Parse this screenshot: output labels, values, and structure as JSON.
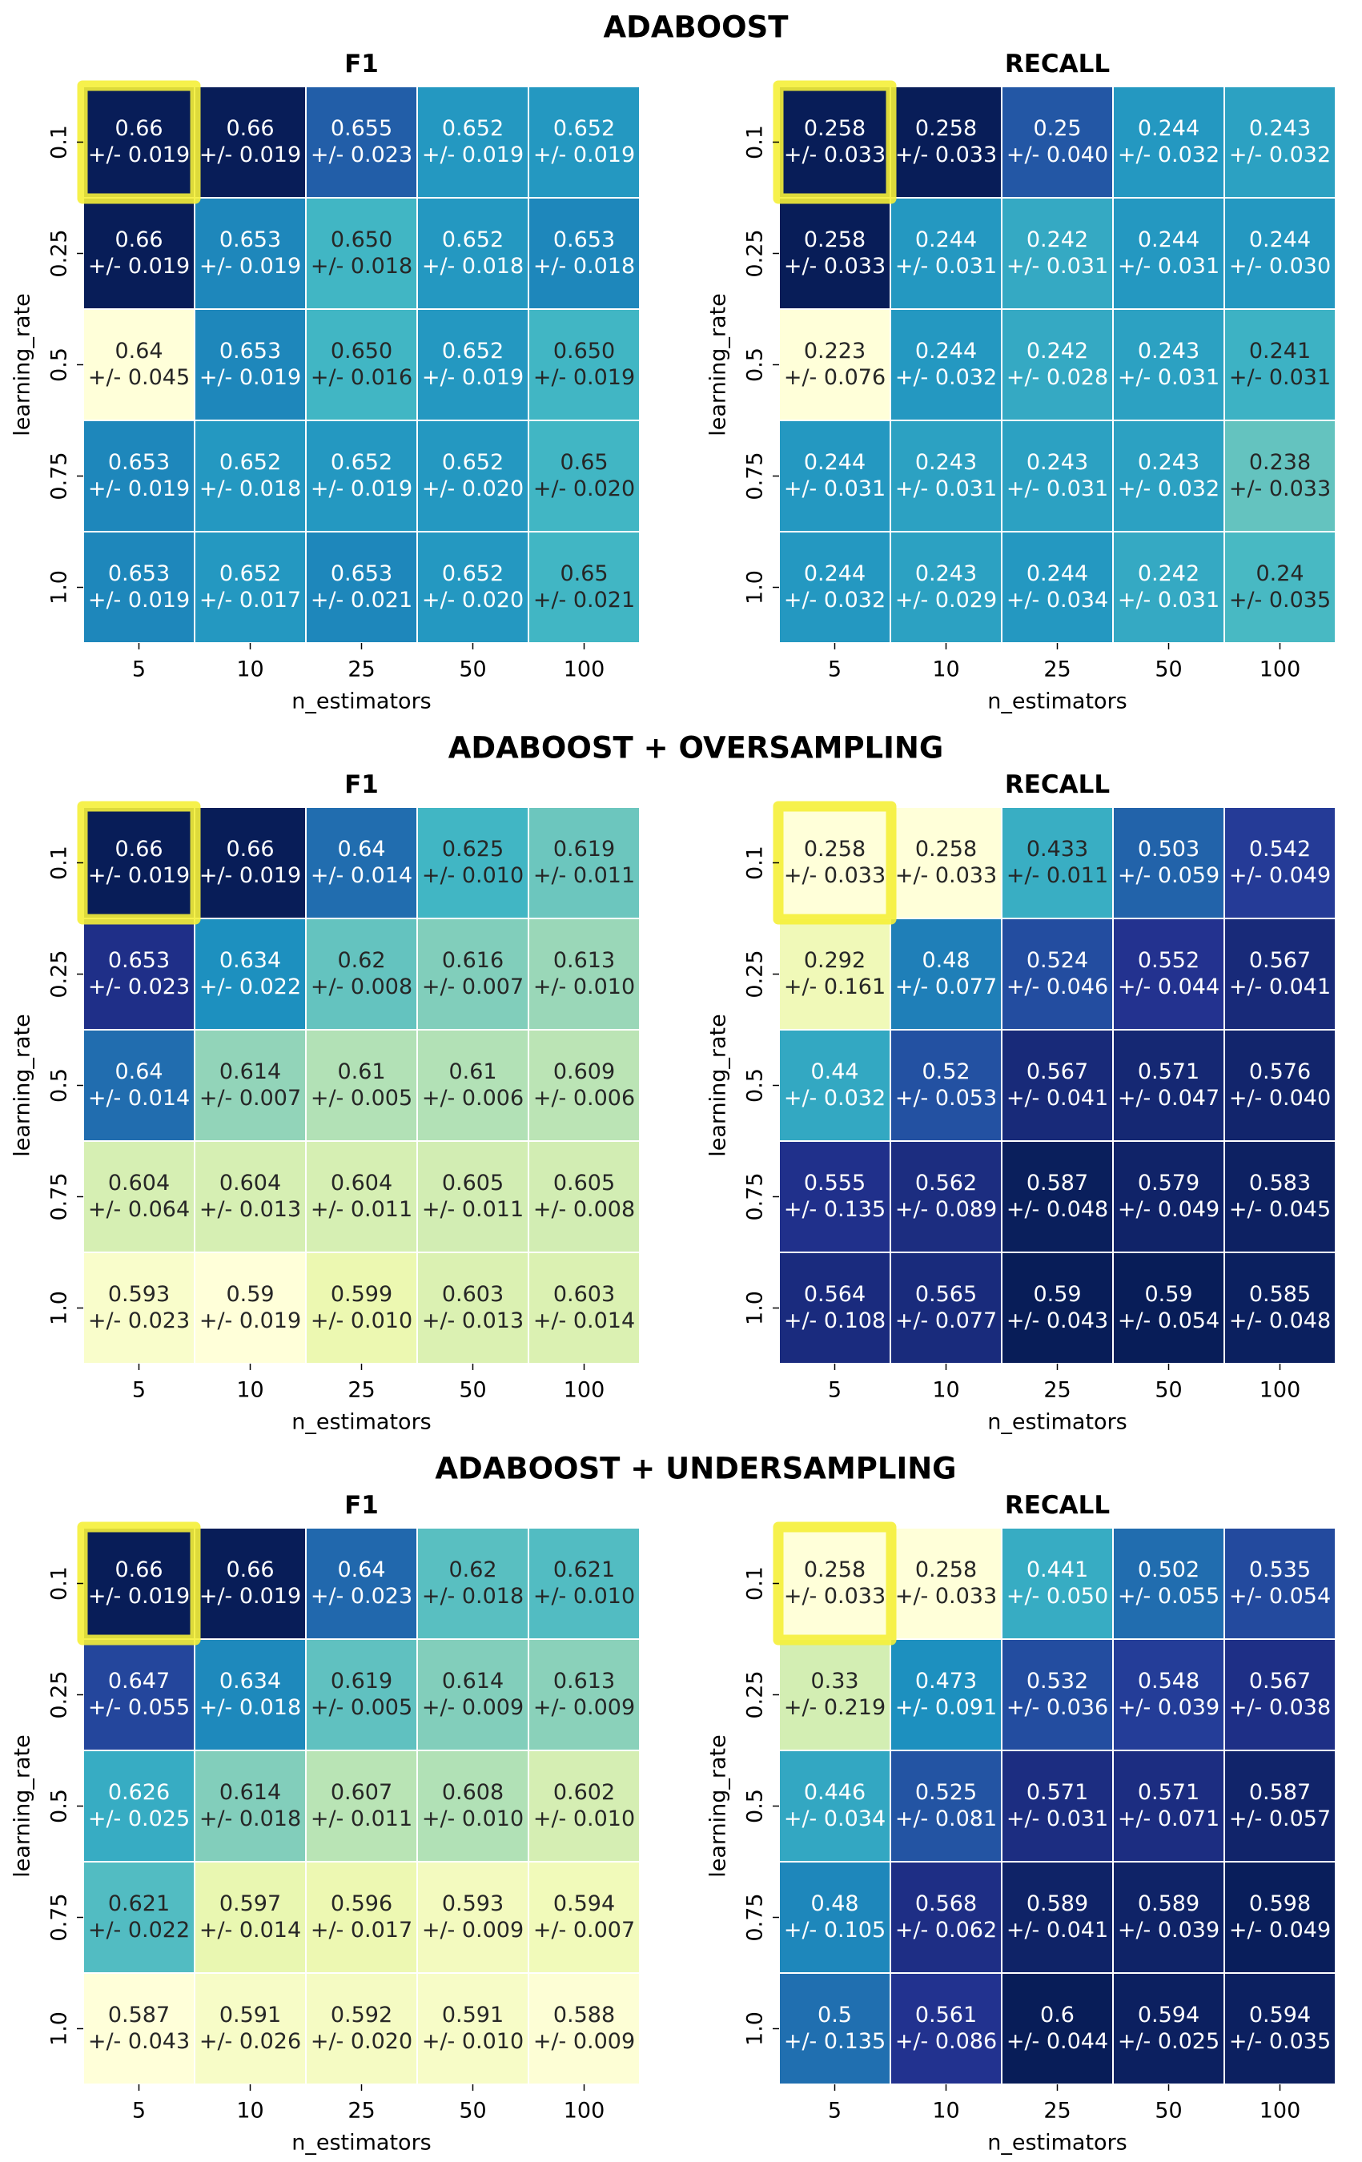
{
  "chart_data": [
    {
      "type": "heatmap",
      "group_title": "ADABOOST",
      "title": "F1",
      "xlabel": "n_estimators",
      "ylabel": "learning_rate",
      "x_ticks": [
        "5",
        "10",
        "25",
        "50",
        "100"
      ],
      "y_ticks": [
        "0.1",
        "0.25",
        "0.5",
        "0.75",
        "1.0"
      ],
      "values": [
        [
          0.66,
          0.66,
          0.655,
          0.652,
          0.652
        ],
        [
          0.66,
          0.653,
          0.65,
          0.652,
          0.653
        ],
        [
          0.64,
          0.653,
          0.65,
          0.652,
          0.65
        ],
        [
          0.653,
          0.652,
          0.652,
          0.652,
          0.65
        ],
        [
          0.653,
          0.652,
          0.653,
          0.652,
          0.65
        ]
      ],
      "labels": [
        [
          "0.66",
          "0.66",
          "0.655",
          "0.652",
          "0.652"
        ],
        [
          "0.66",
          "0.653",
          "0.650",
          "0.652",
          "0.653"
        ],
        [
          "0.64",
          "0.653",
          "0.650",
          "0.652",
          "0.650"
        ],
        [
          "0.653",
          "0.652",
          "0.652",
          "0.652",
          "0.65"
        ],
        [
          "0.653",
          "0.652",
          "0.653",
          "0.652",
          "0.65"
        ]
      ],
      "errors": [
        [
          "+/- 0.019",
          "+/- 0.019",
          "+/- 0.023",
          "+/- 0.019",
          "+/- 0.019"
        ],
        [
          "+/- 0.019",
          "+/- 0.019",
          "+/- 0.018",
          "+/- 0.018",
          "+/- 0.018"
        ],
        [
          "+/- 0.045",
          "+/- 0.019",
          "+/- 0.016",
          "+/- 0.019",
          "+/- 0.019"
        ],
        [
          "+/- 0.019",
          "+/- 0.018",
          "+/- 0.019",
          "+/- 0.020",
          "+/- 0.020"
        ],
        [
          "+/- 0.019",
          "+/- 0.017",
          "+/- 0.021",
          "+/- 0.020",
          "+/- 0.021"
        ]
      ],
      "highlight": [
        0,
        0
      ],
      "colormap": "YlGnBu",
      "highlight_color": "#f5f038"
    },
    {
      "type": "heatmap",
      "title": "RECALL",
      "xlabel": "n_estimators",
      "ylabel": "learning_rate",
      "x_ticks": [
        "5",
        "10",
        "25",
        "50",
        "100"
      ],
      "y_ticks": [
        "0.1",
        "0.25",
        "0.5",
        "0.75",
        "1.0"
      ],
      "values": [
        [
          0.258,
          0.258,
          0.25,
          0.244,
          0.243
        ],
        [
          0.258,
          0.244,
          0.242,
          0.244,
          0.244
        ],
        [
          0.223,
          0.244,
          0.242,
          0.243,
          0.241
        ],
        [
          0.244,
          0.243,
          0.243,
          0.243,
          0.238
        ],
        [
          0.244,
          0.243,
          0.244,
          0.242,
          0.24
        ]
      ],
      "labels": [
        [
          "0.258",
          "0.258",
          "0.25",
          "0.244",
          "0.243"
        ],
        [
          "0.258",
          "0.244",
          "0.242",
          "0.244",
          "0.244"
        ],
        [
          "0.223",
          "0.244",
          "0.242",
          "0.243",
          "0.241"
        ],
        [
          "0.244",
          "0.243",
          "0.243",
          "0.243",
          "0.238"
        ],
        [
          "0.244",
          "0.243",
          "0.244",
          "0.242",
          "0.24"
        ]
      ],
      "errors": [
        [
          "+/- 0.033",
          "+/- 0.033",
          "+/- 0.040",
          "+/- 0.032",
          "+/- 0.032"
        ],
        [
          "+/- 0.033",
          "+/- 0.031",
          "+/- 0.031",
          "+/- 0.031",
          "+/- 0.030"
        ],
        [
          "+/- 0.076",
          "+/- 0.032",
          "+/- 0.028",
          "+/- 0.031",
          "+/- 0.031"
        ],
        [
          "+/- 0.031",
          "+/- 0.031",
          "+/- 0.031",
          "+/- 0.032",
          "+/- 0.033"
        ],
        [
          "+/- 0.032",
          "+/- 0.029",
          "+/- 0.034",
          "+/- 0.031",
          "+/- 0.035"
        ]
      ],
      "highlight": [
        0,
        0
      ],
      "colormap": "YlGnBu",
      "highlight_color": "#f5f038"
    },
    {
      "type": "heatmap",
      "group_title": "ADABOOST + OVERSAMPLING",
      "title": "F1",
      "xlabel": "n_estimators",
      "ylabel": "learning_rate",
      "x_ticks": [
        "5",
        "10",
        "25",
        "50",
        "100"
      ],
      "y_ticks": [
        "0.1",
        "0.25",
        "0.5",
        "0.75",
        "1.0"
      ],
      "values": [
        [
          0.66,
          0.66,
          0.64,
          0.625,
          0.619
        ],
        [
          0.653,
          0.634,
          0.62,
          0.616,
          0.613
        ],
        [
          0.64,
          0.614,
          0.61,
          0.61,
          0.609
        ],
        [
          0.604,
          0.604,
          0.604,
          0.605,
          0.605
        ],
        [
          0.593,
          0.59,
          0.599,
          0.603,
          0.603
        ]
      ],
      "labels": [
        [
          "0.66",
          "0.66",
          "0.64",
          "0.625",
          "0.619"
        ],
        [
          "0.653",
          "0.634",
          "0.62",
          "0.616",
          "0.613"
        ],
        [
          "0.64",
          "0.614",
          "0.61",
          "0.61",
          "0.609"
        ],
        [
          "0.604",
          "0.604",
          "0.604",
          "0.605",
          "0.605"
        ],
        [
          "0.593",
          "0.59",
          "0.599",
          "0.603",
          "0.603"
        ]
      ],
      "errors": [
        [
          "+/- 0.019",
          "+/- 0.019",
          "+/- 0.014",
          "+/- 0.010",
          "+/- 0.011"
        ],
        [
          "+/- 0.023",
          "+/- 0.022",
          "+/- 0.008",
          "+/- 0.007",
          "+/- 0.010"
        ],
        [
          "+/- 0.014",
          "+/- 0.007",
          "+/- 0.005",
          "+/- 0.006",
          "+/- 0.006"
        ],
        [
          "+/- 0.064",
          "+/- 0.013",
          "+/- 0.011",
          "+/- 0.011",
          "+/- 0.008"
        ],
        [
          "+/- 0.023",
          "+/- 0.019",
          "+/- 0.010",
          "+/- 0.013",
          "+/- 0.014"
        ]
      ],
      "highlight": [
        0,
        0
      ],
      "colormap": "YlGnBu",
      "highlight_color": "#f5f038"
    },
    {
      "type": "heatmap",
      "title": "RECALL",
      "xlabel": "n_estimators",
      "ylabel": "learning_rate",
      "x_ticks": [
        "5",
        "10",
        "25",
        "50",
        "100"
      ],
      "y_ticks": [
        "0.1",
        "0.25",
        "0.5",
        "0.75",
        "1.0"
      ],
      "values": [
        [
          0.258,
          0.258,
          0.433,
          0.503,
          0.542
        ],
        [
          0.292,
          0.48,
          0.524,
          0.552,
          0.567
        ],
        [
          0.44,
          0.52,
          0.567,
          0.571,
          0.576
        ],
        [
          0.555,
          0.562,
          0.587,
          0.579,
          0.583
        ],
        [
          0.564,
          0.565,
          0.59,
          0.59,
          0.585
        ]
      ],
      "labels": [
        [
          "0.258",
          "0.258",
          "0.433",
          "0.503",
          "0.542"
        ],
        [
          "0.292",
          "0.48",
          "0.524",
          "0.552",
          "0.567"
        ],
        [
          "0.44",
          "0.52",
          "0.567",
          "0.571",
          "0.576"
        ],
        [
          "0.555",
          "0.562",
          "0.587",
          "0.579",
          "0.583"
        ],
        [
          "0.564",
          "0.565",
          "0.59",
          "0.59",
          "0.585"
        ]
      ],
      "errors": [
        [
          "+/- 0.033",
          "+/- 0.033",
          "+/- 0.011",
          "+/- 0.059",
          "+/- 0.049"
        ],
        [
          "+/- 0.161",
          "+/- 0.077",
          "+/- 0.046",
          "+/- 0.044",
          "+/- 0.041"
        ],
        [
          "+/- 0.032",
          "+/- 0.053",
          "+/- 0.041",
          "+/- 0.047",
          "+/- 0.040"
        ],
        [
          "+/- 0.135",
          "+/- 0.089",
          "+/- 0.048",
          "+/- 0.049",
          "+/- 0.045"
        ],
        [
          "+/- 0.108",
          "+/- 0.077",
          "+/- 0.043",
          "+/- 0.054",
          "+/- 0.048"
        ]
      ],
      "highlight": [
        0,
        0
      ],
      "colormap": "YlGnBu",
      "highlight_color": "#f5f038"
    },
    {
      "type": "heatmap",
      "group_title": "ADABOOST + UNDERSAMPLING",
      "title": "F1",
      "xlabel": "n_estimators",
      "ylabel": "learning_rate",
      "x_ticks": [
        "5",
        "10",
        "25",
        "50",
        "100"
      ],
      "y_ticks": [
        "0.1",
        "0.25",
        "0.5",
        "0.75",
        "1.0"
      ],
      "values": [
        [
          0.66,
          0.66,
          0.64,
          0.62,
          0.621
        ],
        [
          0.647,
          0.634,
          0.619,
          0.614,
          0.613
        ],
        [
          0.626,
          0.614,
          0.607,
          0.608,
          0.602
        ],
        [
          0.621,
          0.597,
          0.596,
          0.593,
          0.594
        ],
        [
          0.587,
          0.591,
          0.592,
          0.591,
          0.588
        ]
      ],
      "labels": [
        [
          "0.66",
          "0.66",
          "0.64",
          "0.62",
          "0.621"
        ],
        [
          "0.647",
          "0.634",
          "0.619",
          "0.614",
          "0.613"
        ],
        [
          "0.626",
          "0.614",
          "0.607",
          "0.608",
          "0.602"
        ],
        [
          "0.621",
          "0.597",
          "0.596",
          "0.593",
          "0.594"
        ],
        [
          "0.587",
          "0.591",
          "0.592",
          "0.591",
          "0.588"
        ]
      ],
      "errors": [
        [
          "+/- 0.019",
          "+/- 0.019",
          "+/- 0.023",
          "+/- 0.018",
          "+/- 0.010"
        ],
        [
          "+/- 0.055",
          "+/- 0.018",
          "+/- 0.005",
          "+/- 0.009",
          "+/- 0.009"
        ],
        [
          "+/- 0.025",
          "+/- 0.018",
          "+/- 0.011",
          "+/- 0.010",
          "+/- 0.010"
        ],
        [
          "+/- 0.022",
          "+/- 0.014",
          "+/- 0.017",
          "+/- 0.009",
          "+/- 0.007"
        ],
        [
          "+/- 0.043",
          "+/- 0.026",
          "+/- 0.020",
          "+/- 0.010",
          "+/- 0.009"
        ]
      ],
      "highlight": [
        0,
        0
      ],
      "colormap": "YlGnBu",
      "highlight_color": "#f5f038"
    },
    {
      "type": "heatmap",
      "title": "RECALL",
      "xlabel": "n_estimators",
      "ylabel": "learning_rate",
      "x_ticks": [
        "5",
        "10",
        "25",
        "50",
        "100"
      ],
      "y_ticks": [
        "0.1",
        "0.25",
        "0.5",
        "0.75",
        "1.0"
      ],
      "values": [
        [
          0.258,
          0.258,
          0.441,
          0.502,
          0.535
        ],
        [
          0.33,
          0.473,
          0.532,
          0.548,
          0.567
        ],
        [
          0.446,
          0.525,
          0.571,
          0.571,
          0.587
        ],
        [
          0.48,
          0.568,
          0.589,
          0.589,
          0.598
        ],
        [
          0.5,
          0.561,
          0.6,
          0.594,
          0.594
        ]
      ],
      "labels": [
        [
          "0.258",
          "0.258",
          "0.441",
          "0.502",
          "0.535"
        ],
        [
          "0.33",
          "0.473",
          "0.532",
          "0.548",
          "0.567"
        ],
        [
          "0.446",
          "0.525",
          "0.571",
          "0.571",
          "0.587"
        ],
        [
          "0.48",
          "0.568",
          "0.589",
          "0.589",
          "0.598"
        ],
        [
          "0.5",
          "0.561",
          "0.6",
          "0.594",
          "0.594"
        ]
      ],
      "errors": [
        [
          "+/- 0.033",
          "+/- 0.033",
          "+/- 0.050",
          "+/- 0.055",
          "+/- 0.054"
        ],
        [
          "+/- 0.219",
          "+/- 0.091",
          "+/- 0.036",
          "+/- 0.039",
          "+/- 0.038"
        ],
        [
          "+/- 0.034",
          "+/- 0.081",
          "+/- 0.031",
          "+/- 0.071",
          "+/- 0.057"
        ],
        [
          "+/- 0.105",
          "+/- 0.062",
          "+/- 0.041",
          "+/- 0.039",
          "+/- 0.049"
        ],
        [
          "+/- 0.135",
          "+/- 0.086",
          "+/- 0.044",
          "+/- 0.025",
          "+/- 0.035"
        ]
      ],
      "highlight": [
        0,
        0
      ],
      "colormap": "YlGnBu",
      "highlight_color": "#f5f038"
    }
  ]
}
